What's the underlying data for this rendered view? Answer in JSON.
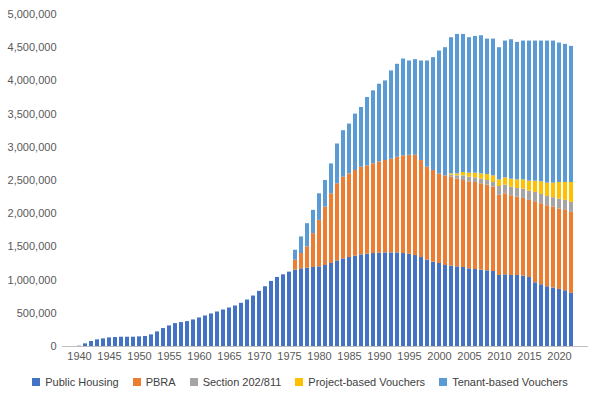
{
  "chart_data": {
    "type": "bar",
    "stacked": true,
    "grid": false,
    "legend": "bottom",
    "categories": [
      "1940",
      null,
      null,
      null,
      null,
      "1945",
      null,
      null,
      null,
      null,
      "1950",
      null,
      null,
      null,
      null,
      "1955",
      null,
      null,
      null,
      null,
      "1960",
      null,
      null,
      null,
      null,
      "1965",
      null,
      null,
      null,
      null,
      "1970",
      null,
      null,
      null,
      null,
      "1975",
      null,
      null,
      null,
      null,
      "1980",
      null,
      null,
      null,
      null,
      "1985",
      null,
      null,
      null,
      null,
      "1990",
      null,
      null,
      null,
      null,
      "1995",
      null,
      null,
      null,
      null,
      "2000",
      null,
      null,
      null,
      null,
      "2005",
      null,
      null,
      null,
      null,
      "2010",
      null,
      null,
      null,
      null,
      "2015",
      null,
      null,
      null,
      null,
      "2020",
      null,
      null
    ],
    "ylim": [
      0,
      5000000
    ],
    "yticks": [
      0,
      {
        "value": 500000,
        "label": "500,000"
      },
      {
        "value": 1000000,
        "label": "1,000,000"
      },
      {
        "value": 1500000,
        "label": "1,500,000"
      },
      {
        "value": 2000000,
        "label": "2,000,000"
      },
      {
        "value": 2500000,
        "label": "2,500,000"
      },
      {
        "value": 3000000,
        "label": "3,000,000"
      },
      {
        "value": 3500000,
        "label": "3,500,000"
      },
      {
        "value": 4000000,
        "label": "4,000,000"
      },
      {
        "value": 4500000,
        "label": "4,500,000"
      },
      {
        "value": 5000000,
        "label": "5,000,000"
      }
    ],
    "series": [
      {
        "name": "Public Housing",
        "color": "#4472c4",
        "values": [
          5000,
          40000,
          75000,
          100000,
          115000,
          130000,
          135000,
          140000,
          140000,
          140000,
          145000,
          150000,
          175000,
          220000,
          270000,
          310000,
          345000,
          360000,
          375000,
          400000,
          430000,
          460000,
          490000,
          520000,
          550000,
          580000,
          610000,
          650000,
          700000,
          760000,
          830000,
          900000,
          980000,
          1040000,
          1080000,
          1120000,
          1150000,
          1170000,
          1180000,
          1190000,
          1200000,
          1220000,
          1250000,
          1290000,
          1320000,
          1340000,
          1360000,
          1380000,
          1390000,
          1400000,
          1405000,
          1410000,
          1410000,
          1410000,
          1400000,
          1390000,
          1370000,
          1340000,
          1300000,
          1270000,
          1250000,
          1220000,
          1210000,
          1200000,
          1190000,
          1170000,
          1160000,
          1150000,
          1140000,
          1130000,
          1070000,
          1080000,
          1070000,
          1070000,
          1060000,
          1040000,
          960000,
          930000,
          900000,
          880000,
          860000,
          840000,
          800000
        ]
      },
      {
        "name": "PBRA",
        "color": "#ed7d31",
        "values": [
          0,
          0,
          0,
          0,
          0,
          0,
          0,
          0,
          0,
          0,
          0,
          0,
          0,
          0,
          0,
          0,
          0,
          0,
          0,
          0,
          0,
          0,
          0,
          0,
          0,
          0,
          0,
          0,
          0,
          0,
          0,
          0,
          0,
          0,
          0,
          0,
          150000,
          230000,
          320000,
          510000,
          700000,
          880000,
          1050000,
          1160000,
          1230000,
          1260000,
          1290000,
          1320000,
          1330000,
          1350000,
          1375000,
          1390000,
          1410000,
          1440000,
          1470000,
          1490000,
          1510000,
          1460000,
          1400000,
          1380000,
          1350000,
          1350000,
          1340000,
          1320000,
          1310000,
          1310000,
          1310000,
          1300000,
          1290000,
          1270000,
          1210000,
          1220000,
          1200000,
          1180000,
          1170000,
          1160000,
          1220000,
          1220000,
          1220000,
          1220000,
          1210000,
          1210000,
          1220000
        ]
      },
      {
        "name": "Section 202/811",
        "color": "#a5a5a5",
        "values": [
          0,
          0,
          0,
          0,
          0,
          0,
          0,
          0,
          0,
          0,
          0,
          0,
          0,
          0,
          0,
          0,
          0,
          0,
          0,
          0,
          0,
          0,
          0,
          0,
          0,
          0,
          0,
          0,
          0,
          0,
          0,
          0,
          0,
          0,
          0,
          0,
          0,
          0,
          0,
          0,
          0,
          0,
          0,
          0,
          0,
          0,
          0,
          0,
          0,
          0,
          0,
          0,
          0,
          0,
          0,
          0,
          0,
          0,
          0,
          0,
          0,
          0,
          30000,
          50000,
          70000,
          70000,
          70000,
          70000,
          70000,
          70000,
          130000,
          130000,
          130000,
          130000,
          140000,
          140000,
          140000,
          140000,
          140000,
          140000,
          150000,
          150000,
          150000
        ]
      },
      {
        "name": "Project-based Vouchers",
        "color": "#ffc000",
        "values": [
          0,
          0,
          0,
          0,
          0,
          0,
          0,
          0,
          0,
          0,
          0,
          0,
          0,
          0,
          0,
          0,
          0,
          0,
          0,
          0,
          0,
          0,
          0,
          0,
          0,
          0,
          0,
          0,
          0,
          0,
          0,
          0,
          0,
          0,
          0,
          0,
          0,
          0,
          0,
          0,
          0,
          0,
          0,
          0,
          0,
          0,
          0,
          0,
          0,
          0,
          0,
          0,
          0,
          0,
          0,
          0,
          0,
          0,
          0,
          0,
          0,
          0,
          20000,
          30000,
          50000,
          60000,
          70000,
          80000,
          90000,
          100000,
          100000,
          110000,
          120000,
          130000,
          140000,
          150000,
          170000,
          190000,
          200000,
          220000,
          250000,
          270000,
          300000
        ]
      },
      {
        "name": "Tenant-based Vouchers",
        "color": "#5b9bd5",
        "values": [
          0,
          0,
          0,
          0,
          0,
          0,
          0,
          0,
          0,
          0,
          0,
          0,
          0,
          0,
          0,
          0,
          0,
          0,
          0,
          0,
          0,
          0,
          0,
          0,
          0,
          0,
          0,
          0,
          0,
          0,
          0,
          0,
          0,
          0,
          0,
          0,
          150000,
          250000,
          350000,
          350000,
          400000,
          400000,
          450000,
          600000,
          700000,
          750000,
          850000,
          900000,
          1030000,
          1100000,
          1170000,
          1200000,
          1330000,
          1400000,
          1460000,
          1420000,
          1440000,
          1500000,
          1600000,
          1700000,
          1850000,
          1930000,
          2050000,
          2100000,
          2080000,
          2040000,
          2060000,
          2080000,
          2040000,
          2060000,
          1990000,
          2060000,
          2100000,
          2070000,
          2090000,
          2110000,
          2110000,
          2120000,
          2140000,
          2140000,
          2100000,
          2080000,
          2050000
        ]
      }
    ]
  }
}
